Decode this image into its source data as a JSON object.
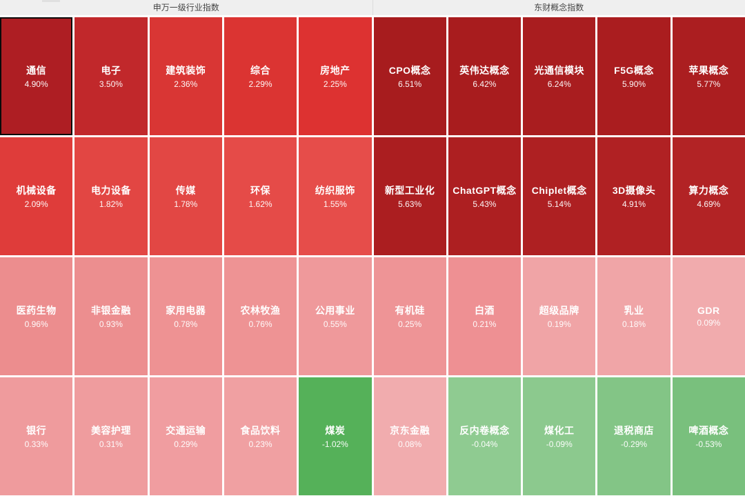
{
  "header": {
    "left_title": "申万一级行业指数",
    "right_title": "东财概念指数"
  },
  "colors": {
    "gain_dark": "#a71c1e",
    "gain_mid": "#dd3231",
    "gain_light": "#f1abad",
    "loss_dark": "#55b159",
    "loss_light": "#8fcb91",
    "header_bg": "#efefef",
    "cell_text": "#ffffff"
  },
  "grid": {
    "columns": 10,
    "cells": [
      {
        "name": "通信",
        "value": "4.90%",
        "color": "#ae1e23",
        "selected": true
      },
      {
        "name": "电子",
        "value": "3.50%",
        "color": "#c1282b"
      },
      {
        "name": "建筑装饰",
        "value": "2.36%",
        "color": "#d93634"
      },
      {
        "name": "综合",
        "value": "2.29%",
        "color": "#db3432"
      },
      {
        "name": "房地产",
        "value": "2.25%",
        "color": "#dd3231"
      },
      {
        "name": "CPO概念",
        "value": "6.51%",
        "color": "#a71c1e"
      },
      {
        "name": "英伟达概念",
        "value": "6.42%",
        "color": "#a81c1e"
      },
      {
        "name": "光通信模块",
        "value": "6.24%",
        "color": "#a91d1f"
      },
      {
        "name": "F5G概念",
        "value": "5.90%",
        "color": "#aa1d1f"
      },
      {
        "name": "苹果概念",
        "value": "5.77%",
        "color": "#ab1e20"
      },
      {
        "name": "机械设备",
        "value": "2.09%",
        "color": "#df3c3a"
      },
      {
        "name": "电力设备",
        "value": "1.82%",
        "color": "#e24643"
      },
      {
        "name": "传媒",
        "value": "1.78%",
        "color": "#e24744"
      },
      {
        "name": "环保",
        "value": "1.62%",
        "color": "#e54b48"
      },
      {
        "name": "纺织服饰",
        "value": "1.55%",
        "color": "#e64d4a"
      },
      {
        "name": "新型工业化",
        "value": "5.63%",
        "color": "#ab1e20"
      },
      {
        "name": "ChatGPT概念",
        "value": "5.43%",
        "color": "#ad1f21"
      },
      {
        "name": "Chiplet概念",
        "value": "5.14%",
        "color": "#ae2022"
      },
      {
        "name": "3D摄像头",
        "value": "4.91%",
        "color": "#b02123"
      },
      {
        "name": "算力概念",
        "value": "4.69%",
        "color": "#b22325"
      },
      {
        "name": "医药生物",
        "value": "0.96%",
        "color": "#ec8d8e"
      },
      {
        "name": "非银金融",
        "value": "0.93%",
        "color": "#ec8e8f"
      },
      {
        "name": "家用电器",
        "value": "0.78%",
        "color": "#ee9293"
      },
      {
        "name": "农林牧渔",
        "value": "0.76%",
        "color": "#ee9394"
      },
      {
        "name": "公用事业",
        "value": "0.55%",
        "color": "#ef999b"
      },
      {
        "name": "有机硅",
        "value": "0.25%",
        "color": "#ee9496"
      },
      {
        "name": "白酒",
        "value": "0.21%",
        "color": "#ee9093"
      },
      {
        "name": "超级品牌",
        "value": "0.19%",
        "color": "#f0a4a6"
      },
      {
        "name": "乳业",
        "value": "0.18%",
        "color": "#f0a5a7"
      },
      {
        "name": "GDR",
        "value": "0.09%",
        "color": "#f1abad"
      },
      {
        "name": "银行",
        "value": "0.33%",
        "color": "#ef9b9d"
      },
      {
        "name": "美容护理",
        "value": "0.31%",
        "color": "#ef9c9e"
      },
      {
        "name": "交通运输",
        "value": "0.29%",
        "color": "#f09da0"
      },
      {
        "name": "食品饮料",
        "value": "0.23%",
        "color": "#f0a0a2"
      },
      {
        "name": "煤炭",
        "value": "-1.02%",
        "color": "#55b159"
      },
      {
        "name": "京东金融",
        "value": "0.08%",
        "color": "#f1acae"
      },
      {
        "name": "反内卷概念",
        "value": "-0.04%",
        "color": "#8fcb91"
      },
      {
        "name": "煤化工",
        "value": "-0.09%",
        "color": "#8cc98e"
      },
      {
        "name": "退税商店",
        "value": "-0.29%",
        "color": "#83c586"
      },
      {
        "name": "啤酒概念",
        "value": "-0.53%",
        "color": "#79c07d"
      }
    ]
  },
  "chart_data": {
    "type": "heatmap",
    "title": "",
    "legend_position": "none",
    "color_semantics": "red = gain (darker = larger gain), green = loss (darker = larger loss)",
    "groups": [
      {
        "name": "申万一级行业指数",
        "items": [
          {
            "label": "通信",
            "value": 4.9
          },
          {
            "label": "电子",
            "value": 3.5
          },
          {
            "label": "建筑装饰",
            "value": 2.36
          },
          {
            "label": "综合",
            "value": 2.29
          },
          {
            "label": "房地产",
            "value": 2.25
          },
          {
            "label": "机械设备",
            "value": 2.09
          },
          {
            "label": "电力设备",
            "value": 1.82
          },
          {
            "label": "传媒",
            "value": 1.78
          },
          {
            "label": "环保",
            "value": 1.62
          },
          {
            "label": "纺织服饰",
            "value": 1.55
          },
          {
            "label": "医药生物",
            "value": 0.96
          },
          {
            "label": "非银金融",
            "value": 0.93
          },
          {
            "label": "家用电器",
            "value": 0.78
          },
          {
            "label": "农林牧渔",
            "value": 0.76
          },
          {
            "label": "公用事业",
            "value": 0.55
          },
          {
            "label": "银行",
            "value": 0.33
          },
          {
            "label": "美容护理",
            "value": 0.31
          },
          {
            "label": "交通运输",
            "value": 0.29
          },
          {
            "label": "食品饮料",
            "value": 0.23
          },
          {
            "label": "煤炭",
            "value": -1.02
          }
        ]
      },
      {
        "name": "东财概念指数",
        "items": [
          {
            "label": "CPO概念",
            "value": 6.51
          },
          {
            "label": "英伟达概念",
            "value": 6.42
          },
          {
            "label": "光通信模块",
            "value": 6.24
          },
          {
            "label": "F5G概念",
            "value": 5.9
          },
          {
            "label": "苹果概念",
            "value": 5.77
          },
          {
            "label": "新型工业化",
            "value": 5.63
          },
          {
            "label": "ChatGPT概念",
            "value": 5.43
          },
          {
            "label": "Chiplet概念",
            "value": 5.14
          },
          {
            "label": "3D摄像头",
            "value": 4.91
          },
          {
            "label": "算力概念",
            "value": 4.69
          },
          {
            "label": "有机硅",
            "value": 0.25
          },
          {
            "label": "白酒",
            "value": 0.21
          },
          {
            "label": "超级品牌",
            "value": 0.19
          },
          {
            "label": "乳业",
            "value": 0.18
          },
          {
            "label": "GDR",
            "value": 0.09
          },
          {
            "label": "京东金融",
            "value": 0.08
          },
          {
            "label": "反内卷概念",
            "value": -0.04
          },
          {
            "label": "煤化工",
            "value": -0.09
          },
          {
            "label": "退税商店",
            "value": -0.29
          },
          {
            "label": "啤酒概念",
            "value": -0.53
          }
        ]
      }
    ]
  }
}
